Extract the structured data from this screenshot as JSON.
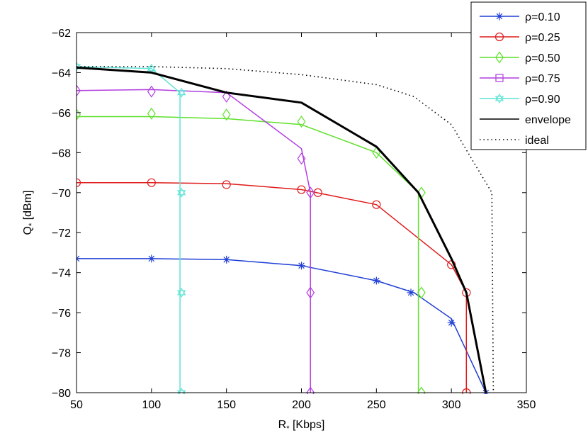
{
  "chart_data": {
    "type": "line",
    "xlabel": "R",
    "xlabel_sub": "*",
    "xlabel_unit": " [Kbps]",
    "ylabel": "Q",
    "ylabel_sub": "*",
    "ylabel_unit": " [dBm]",
    "xlim": [
      50,
      350
    ],
    "ylim": [
      -80,
      -62
    ],
    "xticks": [
      50,
      100,
      150,
      200,
      250,
      300,
      350
    ],
    "yticks": [
      -80,
      -78,
      -76,
      -74,
      -72,
      -70,
      -68,
      -66,
      -64,
      -62
    ],
    "xtick_labels": [
      "50",
      "100",
      "150",
      "200",
      "250",
      "300",
      "350"
    ],
    "ytick_labels": [
      "−80",
      "−78",
      "−76",
      "−74",
      "−72",
      "−70",
      "−68",
      "−66",
      "−64",
      "−62"
    ],
    "grid": false,
    "legend_position": "top-right",
    "series": [
      {
        "name": "ρ=0.10",
        "color": "#1f3fd6",
        "marker": "asterisk",
        "x": [
          50,
          100,
          150,
          200,
          250,
          275,
          300,
          323
        ],
        "y": [
          -73.3,
          -73.3,
          -73.35,
          -73.65,
          -74.4,
          -75.0,
          -76.3,
          -80
        ],
        "marker_x": [
          50,
          100,
          150,
          200,
          250,
          273,
          300,
          323
        ],
        "marker_y": [
          -73.3,
          -73.3,
          -73.35,
          -73.65,
          -74.4,
          -75.0,
          -76.5,
          -80
        ]
      },
      {
        "name": "ρ=0.25",
        "color": "#e01b1b",
        "marker": "circle",
        "x": [
          50,
          100,
          150,
          200,
          250,
          300,
          310,
          310
        ],
        "y": [
          -69.5,
          -69.5,
          -69.55,
          -69.85,
          -70.6,
          -73.6,
          -75.0,
          -80
        ],
        "marker_x": [
          50,
          100,
          150,
          200,
          211,
          250,
          300,
          310,
          310
        ],
        "marker_y": [
          -69.5,
          -69.5,
          -69.6,
          -69.85,
          -70.0,
          -70.6,
          -73.6,
          -75.0,
          -80
        ]
      },
      {
        "name": "ρ=0.50",
        "color": "#5ee02a",
        "marker": "diamond",
        "x": [
          50,
          100,
          150,
          200,
          250,
          278,
          278
        ],
        "y": [
          -66.2,
          -66.2,
          -66.3,
          -66.6,
          -68.0,
          -70.0,
          -80
        ],
        "marker_x": [
          50,
          100,
          150,
          200,
          250,
          280,
          280,
          280
        ],
        "marker_y": [
          -66.1,
          -66.05,
          -66.1,
          -66.45,
          -68.0,
          -70.0,
          -75.0,
          -80
        ]
      },
      {
        "name": "ρ=0.75",
        "color": "#b23ee0",
        "marker": "square",
        "x": [
          50,
          100,
          150,
          200,
          206,
          206
        ],
        "y": [
          -64.9,
          -64.85,
          -65.0,
          -67.8,
          -70.0,
          -80
        ],
        "marker_x": [
          50,
          100,
          150,
          200,
          206,
          206,
          206
        ],
        "marker_y": [
          -64.9,
          -64.95,
          -65.2,
          -68.3,
          -70.0,
          -75.0,
          -80
        ],
        "marker_draw": "diamond"
      },
      {
        "name": "ρ=0.90",
        "color": "#5fe3d6",
        "marker": "hexagram",
        "x": [
          50,
          100,
          119,
          119
        ],
        "y": [
          -63.7,
          -63.8,
          -65.0,
          -80
        ],
        "marker_x": [
          50,
          100,
          120,
          120,
          120,
          120
        ],
        "marker_y": [
          -63.7,
          -63.8,
          -65.0,
          -70.0,
          -75.0,
          -80
        ]
      },
      {
        "name": "envelope",
        "color": "#000000",
        "marker": "none",
        "line_width": 3,
        "x": [
          50,
          100,
          150,
          200,
          250,
          278,
          300,
          310,
          323
        ],
        "y": [
          -63.75,
          -64.0,
          -65.0,
          -65.5,
          -67.7,
          -70.0,
          -73.3,
          -75.0,
          -80
        ]
      },
      {
        "name": "ideal",
        "color": "#000000",
        "marker": "none",
        "dotted": true,
        "x": [
          50,
          100,
          150,
          200,
          250,
          275,
          300,
          315,
          327,
          328
        ],
        "y": [
          -63.7,
          -63.7,
          -63.8,
          -64.1,
          -64.6,
          -65.2,
          -66.6,
          -68.5,
          -70.0,
          -80
        ]
      }
    ]
  }
}
